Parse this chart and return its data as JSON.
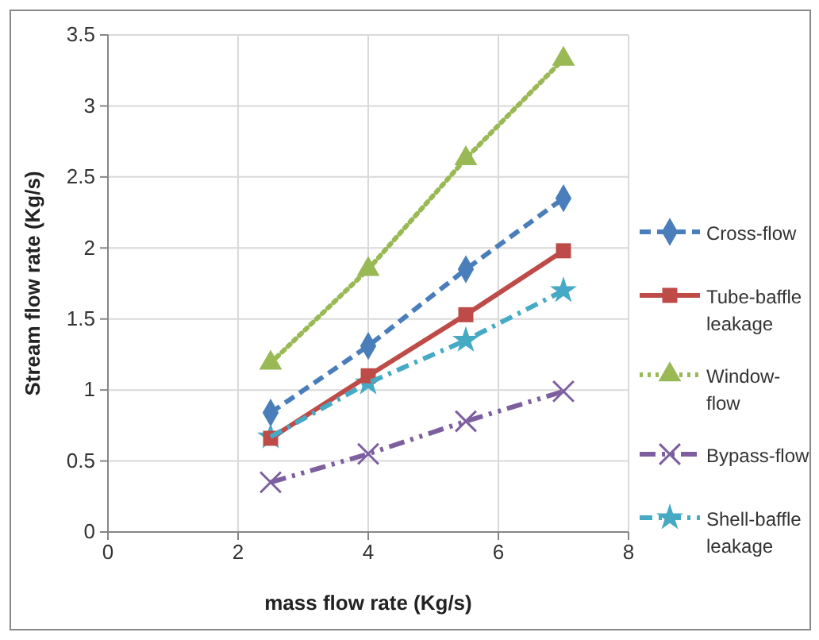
{
  "chart_data": {
    "type": "line",
    "xlabel": "mass flow rate (Kg/s)",
    "ylabel": "Stream flow rate (Kg/s)",
    "x": [
      2.5,
      4,
      5.5,
      7
    ],
    "xlim": [
      0,
      8
    ],
    "xticks": [
      0,
      2,
      4,
      6,
      8
    ],
    "ylim": [
      0,
      3.5
    ],
    "yticks": [
      0,
      0.5,
      1,
      1.5,
      2,
      2.5,
      3,
      3.5
    ],
    "grid": true,
    "legend": "right",
    "series": [
      {
        "name": "Cross-flow",
        "color": "#4a7ebb",
        "values": [
          0.84,
          1.31,
          1.85,
          2.35
        ],
        "marker": "diamond",
        "line_style": "dashed"
      },
      {
        "name": "Tube-baffle leakage",
        "color": "#be4b48",
        "values": [
          0.66,
          1.1,
          1.53,
          1.98
        ],
        "marker": "square",
        "line_style": "solid"
      },
      {
        "name": "Window-flow",
        "color": "#98b954",
        "values": [
          1.19,
          1.85,
          2.63,
          3.33
        ],
        "marker": "triangle",
        "line_style": "dotted"
      },
      {
        "name": "Bypass-flow",
        "color": "#7d5fa0",
        "values": [
          0.35,
          0.55,
          0.78,
          0.99
        ],
        "marker": "cross",
        "line_style": "dashdotdot"
      },
      {
        "name": "Shell-baffle leakage",
        "color": "#46aac5",
        "values": [
          0.67,
          1.05,
          1.35,
          1.7
        ],
        "marker": "star",
        "line_style": "dashdot"
      }
    ]
  }
}
